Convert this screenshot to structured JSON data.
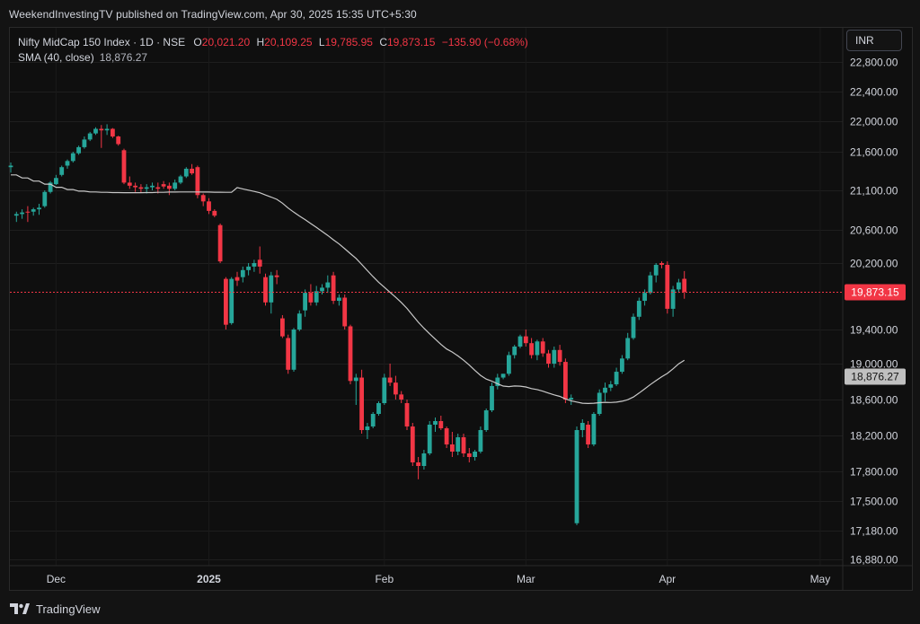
{
  "publisher_line": "WeekendInvestingTV published on TradingView.com, Apr 30, 2025 15:35 UTC+5:30",
  "legend": {
    "symbol": "Nifty MidCap 150 Index · 1D · NSE",
    "o_label": "O",
    "o_value": "20,021.20",
    "h_label": "H",
    "h_value": "20,109.25",
    "l_label": "L",
    "l_value": "19,785.95",
    "c_label": "C",
    "c_value": "19,873.15",
    "change": "−135.90 (−0.68%)",
    "sma_label": "SMA (40, close)",
    "sma_value": "18,876.27"
  },
  "currency_button": "INR",
  "brand": "TradingView",
  "colors": {
    "up": "#26a69a",
    "down": "#f23645",
    "sma": "#c9c9c9",
    "last_price_bg": "#f23645",
    "sma_tag_bg": "#c0c0c0"
  },
  "chart_data": {
    "type": "candlestick",
    "title": "Nifty MidCap 150 Index · 1D · NSE",
    "y_ticks": [
      "22,800.00",
      "22,400.00",
      "22,000.00",
      "21,600.00",
      "21,100.00",
      "20,600.00",
      "20,200.00",
      "19,400.00",
      "19,000.00",
      "18,600.00",
      "18,200.00",
      "17,800.00",
      "17,500.00",
      "17,180.00",
      "16,880.00"
    ],
    "x_ticks": [
      "Dec",
      "2025",
      "Feb",
      "Mar",
      "Apr",
      "May"
    ],
    "last_price_label": "19,873.15",
    "sma_label": "18,876.27",
    "candles": [
      [
        21400,
        21460,
        21330,
        21420
      ],
      [
        20780,
        20830,
        20700,
        20800
      ],
      [
        20800,
        20860,
        20740,
        20820
      ],
      [
        20830,
        20900,
        20700,
        20820
      ],
      [
        20830,
        20880,
        20780,
        20860
      ],
      [
        20860,
        20930,
        20790,
        20880
      ],
      [
        20900,
        21100,
        20880,
        21080
      ],
      [
        21080,
        21220,
        21060,
        21200
      ],
      [
        21180,
        21300,
        21170,
        21260
      ],
      [
        21300,
        21420,
        21280,
        21400
      ],
      [
        21420,
        21500,
        21380,
        21480
      ],
      [
        21480,
        21600,
        21460,
        21580
      ],
      [
        21580,
        21680,
        21560,
        21660
      ],
      [
        21660,
        21800,
        21640,
        21760
      ],
      [
        21760,
        21860,
        21740,
        21840
      ],
      [
        21840,
        21920,
        21820,
        21900
      ],
      [
        21900,
        21950,
        21650,
        21880
      ],
      [
        21880,
        21960,
        21820,
        21900
      ],
      [
        21900,
        21910,
        21780,
        21800
      ],
      [
        21800,
        21810,
        21680,
        21700
      ],
      [
        21620,
        21640,
        21180,
        21200
      ],
      [
        21200,
        21280,
        21120,
        21160
      ],
      [
        21160,
        21200,
        21080,
        21140
      ],
      [
        21140,
        21180,
        21070,
        21120
      ],
      [
        21120,
        21180,
        21060,
        21140
      ],
      [
        21140,
        21200,
        21100,
        21160
      ],
      [
        21140,
        21200,
        21060,
        21120
      ],
      [
        21180,
        21220,
        21120,
        21150
      ],
      [
        21160,
        21200,
        21040,
        21120
      ],
      [
        21120,
        21240,
        21100,
        21200
      ],
      [
        21200,
        21300,
        21180,
        21280
      ],
      [
        21280,
        21400,
        21260,
        21380
      ],
      [
        21380,
        21440,
        21300,
        21320
      ],
      [
        21400,
        21420,
        21000,
        21040
      ],
      [
        21040,
        21060,
        20900,
        20960
      ],
      [
        20960,
        21000,
        20800,
        20840
      ],
      [
        20840,
        20860,
        20760,
        20780
      ],
      [
        20660,
        20680,
        20200,
        20220
      ],
      [
        20020,
        20040,
        19400,
        19460
      ],
      [
        19480,
        20040,
        19460,
        20020
      ],
      [
        20040,
        20100,
        19940,
        20000
      ],
      [
        20040,
        20160,
        19980,
        20120
      ],
      [
        20120,
        20200,
        20060,
        20160
      ],
      [
        20160,
        20240,
        20100,
        20200
      ],
      [
        20240,
        20400,
        20080,
        20160
      ],
      [
        20040,
        20080,
        19700,
        19740
      ],
      [
        19740,
        20100,
        19600,
        20060
      ],
      [
        20060,
        20120,
        19960,
        20040
      ],
      [
        19540,
        19580,
        19300,
        19320
      ],
      [
        19300,
        19340,
        18900,
        18940
      ],
      [
        18940,
        19420,
        18920,
        19400
      ],
      [
        19400,
        19640,
        19380,
        19600
      ],
      [
        19640,
        19900,
        19560,
        19860
      ],
      [
        19860,
        19960,
        19700,
        19740
      ],
      [
        19740,
        19940,
        19700,
        19880
      ],
      [
        19880,
        19960,
        19840,
        19920
      ],
      [
        19920,
        20060,
        19860,
        19980
      ],
      [
        20060,
        20100,
        19720,
        19760
      ],
      [
        19760,
        19840,
        19700,
        19800
      ],
      [
        19800,
        19840,
        19400,
        19440
      ],
      [
        19440,
        19460,
        18780,
        18820
      ],
      [
        18820,
        18900,
        18540,
        18860
      ],
      [
        18860,
        18940,
        18220,
        18260
      ],
      [
        18260,
        18340,
        18160,
        18300
      ],
      [
        18300,
        18460,
        18280,
        18440
      ],
      [
        18440,
        18580,
        18420,
        18560
      ],
      [
        18560,
        18900,
        18540,
        18860
      ],
      [
        18860,
        19000,
        18760,
        18800
      ],
      [
        18800,
        18880,
        18600,
        18660
      ],
      [
        18660,
        18700,
        18560,
        18600
      ],
      [
        18560,
        18600,
        18260,
        18300
      ],
      [
        18300,
        18340,
        17860,
        17900
      ],
      [
        17900,
        17960,
        17720,
        17860
      ],
      [
        17860,
        18040,
        17820,
        18000
      ],
      [
        18000,
        18360,
        17980,
        18320
      ],
      [
        18320,
        18400,
        18240,
        18360
      ],
      [
        18360,
        18420,
        18260,
        18280
      ],
      [
        18280,
        18300,
        18060,
        18100
      ],
      [
        18100,
        18240,
        17960,
        18020
      ],
      [
        18020,
        18220,
        17980,
        18180
      ],
      [
        18180,
        18220,
        17960,
        18000
      ],
      [
        18000,
        18060,
        17900,
        17960
      ],
      [
        17960,
        18040,
        17920,
        18020
      ],
      [
        18020,
        18300,
        18000,
        18260
      ],
      [
        18260,
        18500,
        18240,
        18480
      ],
      [
        18480,
        18800,
        18460,
        18760
      ],
      [
        18760,
        18900,
        18720,
        18860
      ],
      [
        18860,
        18900,
        18840,
        18900
      ],
      [
        18900,
        19140,
        18880,
        19100
      ],
      [
        19100,
        19220,
        19060,
        19200
      ],
      [
        19200,
        19340,
        19180,
        19320
      ],
      [
        19320,
        19400,
        19200,
        19240
      ],
      [
        19240,
        19300,
        19060,
        19100
      ],
      [
        19100,
        19280,
        19040,
        19260
      ],
      [
        19260,
        19300,
        19080,
        19120
      ],
      [
        19120,
        19160,
        18960,
        19000
      ],
      [
        19000,
        19200,
        18960,
        19160
      ],
      [
        19160,
        19220,
        18980,
        19020
      ],
      [
        19020,
        19060,
        18560,
        18600
      ],
      [
        18600,
        18660,
        18540,
        18620
      ],
      [
        17260,
        18300,
        17240,
        18260
      ],
      [
        18260,
        18380,
        18180,
        18340
      ],
      [
        18320,
        18360,
        18060,
        18100
      ],
      [
        18100,
        18460,
        18080,
        18440
      ],
      [
        18440,
        18720,
        18420,
        18680
      ],
      [
        18680,
        18800,
        18580,
        18740
      ],
      [
        18740,
        18820,
        18700,
        18780
      ],
      [
        18780,
        18960,
        18760,
        18920
      ],
      [
        18920,
        19100,
        18900,
        19060
      ],
      [
        19060,
        19360,
        19040,
        19300
      ],
      [
        19300,
        19600,
        19280,
        19560
      ],
      [
        19560,
        19800,
        19520,
        19760
      ],
      [
        19760,
        19900,
        19700,
        19860
      ],
      [
        19860,
        20100,
        19840,
        20060
      ],
      [
        20060,
        20200,
        19980,
        20180
      ],
      [
        20200,
        20220,
        20140,
        20180
      ],
      [
        20180,
        20220,
        19600,
        19660
      ],
      [
        19660,
        19940,
        19560,
        19900
      ],
      [
        19900,
        20020,
        19860,
        19980
      ],
      [
        20021,
        20109,
        19786,
        19873
      ]
    ]
  }
}
